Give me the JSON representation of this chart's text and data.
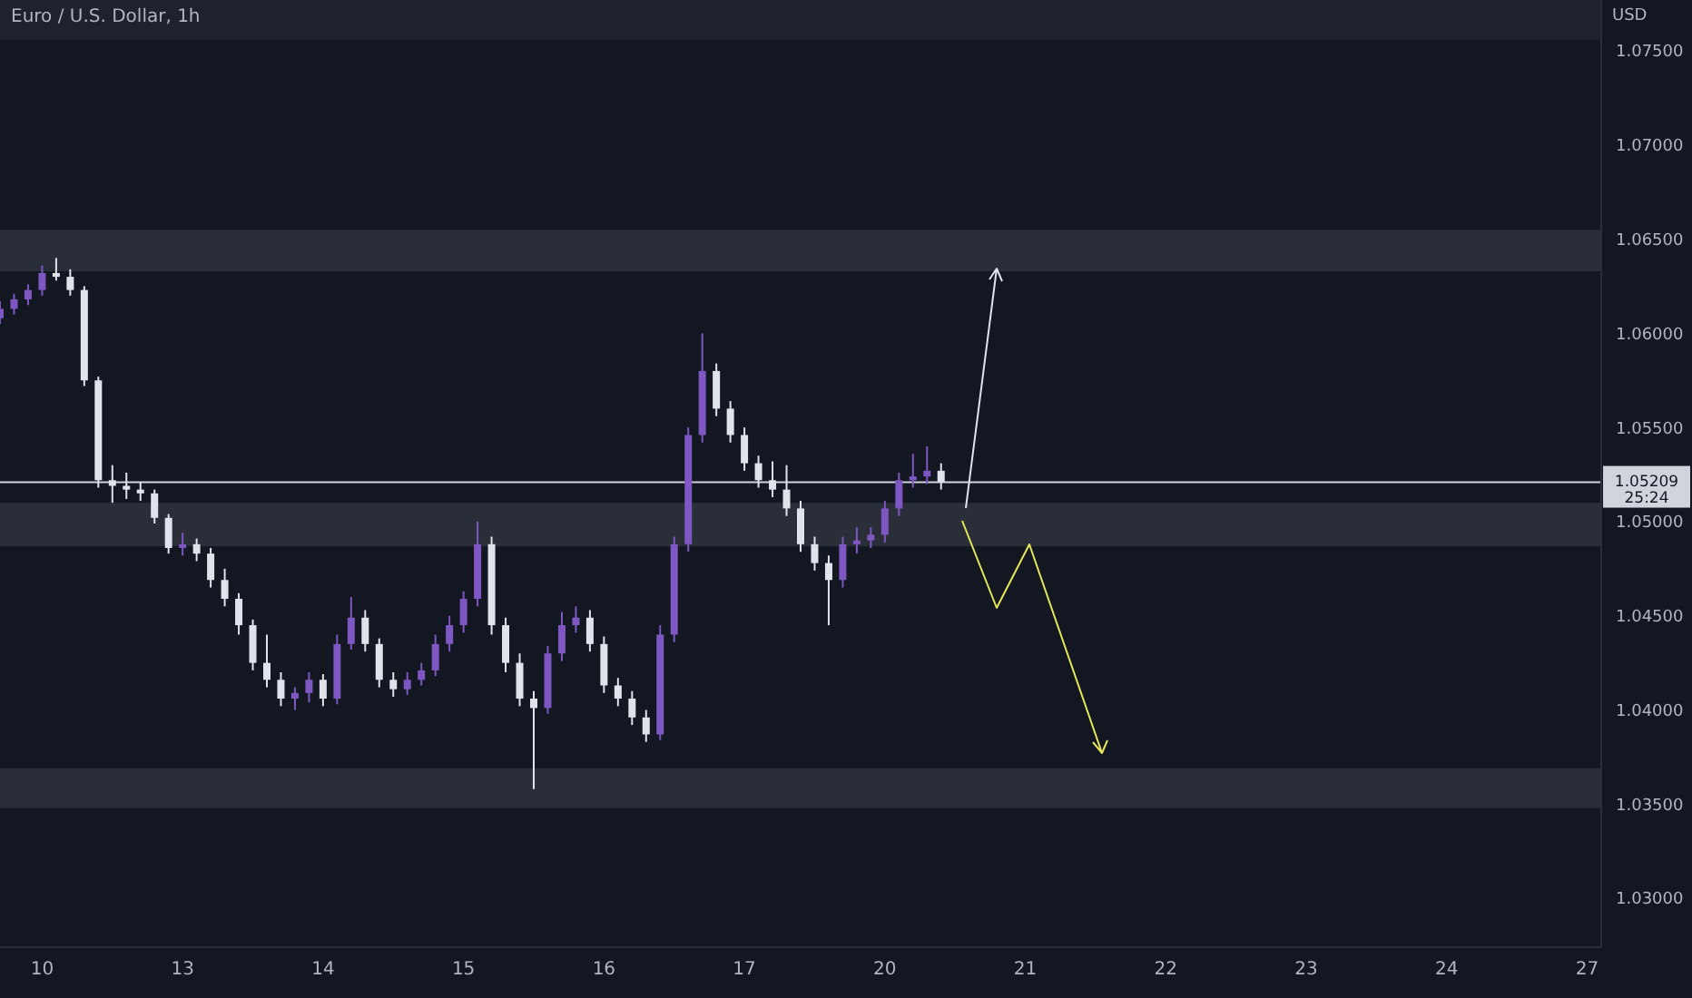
{
  "chart_data": {
    "type": "candlestick",
    "title": "Euro / U.S. Dollar, 1h",
    "ylabel": "USD",
    "categories": [
      null,
      null,
      null,
      "10",
      null,
      null,
      null,
      null,
      null,
      null,
      null,
      null,
      null,
      "13",
      null,
      null,
      null,
      null,
      null,
      null,
      null,
      null,
      null,
      "14",
      null,
      null,
      null,
      null,
      null,
      null,
      null,
      null,
      null,
      "15",
      null,
      null,
      null,
      null,
      null,
      null,
      null,
      null,
      null,
      "16",
      null,
      null,
      null,
      null,
      null,
      null,
      null,
      null,
      null,
      "17",
      null,
      null,
      null,
      null,
      null,
      null,
      null,
      null,
      null,
      "20",
      null,
      null,
      null,
      null,
      null,
      null,
      null,
      null,
      null,
      "21",
      null,
      null,
      null,
      null,
      null,
      null,
      null,
      null,
      null,
      "22",
      null,
      null,
      null,
      null,
      null,
      null,
      null,
      null,
      null,
      "23",
      null,
      null,
      null,
      null,
      null,
      null,
      null,
      null,
      null,
      "24",
      null,
      null,
      null,
      null,
      null,
      null,
      null,
      null,
      null,
      "27",
      null
    ],
    "ohlc": [
      [
        1.0608,
        1.0617,
        1.0605,
        1.0613
      ],
      [
        1.0613,
        1.0621,
        1.061,
        1.0618
      ],
      [
        1.0618,
        1.0626,
        1.0615,
        1.0623
      ],
      [
        1.0623,
        1.0636,
        1.062,
        1.0632
      ],
      [
        1.0632,
        1.064,
        1.0628,
        1.063
      ],
      [
        1.063,
        1.0634,
        1.062,
        1.0623
      ],
      [
        1.0623,
        1.0625,
        1.0572,
        1.0575
      ],
      [
        1.0575,
        1.0577,
        1.0518,
        1.0522
      ],
      [
        1.0522,
        1.053,
        1.051,
        1.0519
      ],
      [
        1.0519,
        1.0526,
        1.0512,
        1.0517
      ],
      [
        1.0517,
        1.0521,
        1.0511,
        1.0515
      ],
      [
        1.0515,
        1.0517,
        1.0499,
        1.0502
      ],
      [
        1.0502,
        1.0504,
        1.0483,
        1.0486
      ],
      [
        1.0486,
        1.0494,
        1.0482,
        1.0488
      ],
      [
        1.0488,
        1.0491,
        1.0479,
        1.0483
      ],
      [
        1.0483,
        1.0486,
        1.0465,
        1.0469
      ],
      [
        1.0469,
        1.0475,
        1.0455,
        1.0459
      ],
      [
        1.0459,
        1.0462,
        1.044,
        1.0445
      ],
      [
        1.0445,
        1.0448,
        1.0421,
        1.0425
      ],
      [
        1.0425,
        1.044,
        1.0412,
        1.0416
      ],
      [
        1.0416,
        1.042,
        1.0402,
        1.0406
      ],
      [
        1.0406,
        1.0412,
        1.04,
        1.0409
      ],
      [
        1.0409,
        1.042,
        1.0404,
        1.0416
      ],
      [
        1.0416,
        1.0419,
        1.0402,
        1.0406
      ],
      [
        1.0406,
        1.044,
        1.0403,
        1.0435
      ],
      [
        1.0435,
        1.046,
        1.0432,
        1.0449
      ],
      [
        1.0449,
        1.0453,
        1.0431,
        1.0435
      ],
      [
        1.0435,
        1.0438,
        1.0412,
        1.0416
      ],
      [
        1.0416,
        1.042,
        1.0407,
        1.0411
      ],
      [
        1.0411,
        1.042,
        1.0408,
        1.0416
      ],
      [
        1.0416,
        1.0425,
        1.0413,
        1.0421
      ],
      [
        1.0421,
        1.044,
        1.0418,
        1.0435
      ],
      [
        1.0435,
        1.045,
        1.0431,
        1.0445
      ],
      [
        1.0445,
        1.0463,
        1.0441,
        1.0459
      ],
      [
        1.0459,
        1.05,
        1.0455,
        1.0488
      ],
      [
        1.0488,
        1.0492,
        1.044,
        1.0445
      ],
      [
        1.0445,
        1.0449,
        1.042,
        1.0425
      ],
      [
        1.0425,
        1.043,
        1.0402,
        1.0406
      ],
      [
        1.0406,
        1.041,
        1.0358,
        1.0401
      ],
      [
        1.0401,
        1.0434,
        1.0398,
        1.043
      ],
      [
        1.043,
        1.0452,
        1.0426,
        1.0445
      ],
      [
        1.0445,
        1.0455,
        1.0441,
        1.0449
      ],
      [
        1.0449,
        1.0453,
        1.0431,
        1.0435
      ],
      [
        1.0435,
        1.0439,
        1.0409,
        1.0413
      ],
      [
        1.0413,
        1.0417,
        1.0402,
        1.0406
      ],
      [
        1.0406,
        1.041,
        1.0392,
        1.0396
      ],
      [
        1.0396,
        1.04,
        1.0383,
        1.0387
      ],
      [
        1.0387,
        1.0445,
        1.0384,
        1.044
      ],
      [
        1.044,
        1.0492,
        1.0436,
        1.0488
      ],
      [
        1.0488,
        1.055,
        1.0484,
        1.0546
      ],
      [
        1.0546,
        1.06,
        1.0542,
        1.058
      ],
      [
        1.058,
        1.0584,
        1.0556,
        1.056
      ],
      [
        1.056,
        1.0564,
        1.0542,
        1.0546
      ],
      [
        1.0546,
        1.055,
        1.0527,
        1.0531
      ],
      [
        1.0531,
        1.0535,
        1.0518,
        1.0522
      ],
      [
        1.0522,
        1.0532,
        1.0513,
        1.0517
      ],
      [
        1.0517,
        1.053,
        1.0503,
        1.0507
      ],
      [
        1.0507,
        1.0511,
        1.0484,
        1.0488
      ],
      [
        1.0488,
        1.0492,
        1.0474,
        1.0478
      ],
      [
        1.0478,
        1.0482,
        1.0445,
        1.0469
      ],
      [
        1.0469,
        1.0492,
        1.0465,
        1.0488
      ],
      [
        1.0488,
        1.0497,
        1.0483,
        1.049
      ],
      [
        1.049,
        1.0497,
        1.0486,
        1.0493
      ],
      [
        1.0493,
        1.0511,
        1.0489,
        1.0507
      ],
      [
        1.0507,
        1.0526,
        1.0503,
        1.0522
      ],
      [
        1.0522,
        1.0536,
        1.0518,
        1.0524
      ],
      [
        1.0524,
        1.054,
        1.052,
        1.0527
      ],
      [
        1.0527,
        1.0531,
        1.0517,
        1.0521
      ],
      null,
      null,
      null,
      null,
      null,
      null,
      null,
      null,
      null,
      null,
      null,
      null,
      null,
      null,
      null,
      null,
      null,
      null,
      null,
      null,
      null,
      null,
      null,
      null,
      null,
      null,
      null,
      null,
      null,
      null,
      null,
      null,
      null,
      null,
      null,
      null,
      null,
      null,
      null,
      null,
      null,
      null,
      null,
      null,
      null,
      null,
      null
    ],
    "colors": [
      "#7e57c2",
      "#7e57c2",
      "#7e57c2",
      "#7e57c2",
      "#e0e3eb",
      "#e0e3eb",
      "#e0e3eb",
      "#e0e3eb",
      "#e0e3eb",
      "#e0e3eb",
      "#e0e3eb",
      "#e0e3eb",
      "#e0e3eb",
      "#7e57c2",
      "#e0e3eb",
      "#e0e3eb",
      "#e0e3eb",
      "#e0e3eb",
      "#e0e3eb",
      "#e0e3eb",
      "#e0e3eb",
      "#7e57c2",
      "#7e57c2",
      "#e0e3eb",
      "#7e57c2",
      "#7e57c2",
      "#e0e3eb",
      "#e0e3eb",
      "#e0e3eb",
      "#7e57c2",
      "#7e57c2",
      "#7e57c2",
      "#7e57c2",
      "#7e57c2",
      "#7e57c2",
      "#e0e3eb",
      "#e0e3eb",
      "#e0e3eb",
      "#e0e3eb",
      "#7e57c2",
      "#7e57c2",
      "#7e57c2",
      "#e0e3eb",
      "#e0e3eb",
      "#e0e3eb",
      "#e0e3eb",
      "#e0e3eb",
      "#7e57c2",
      "#7e57c2",
      "#7e57c2",
      "#7e57c2",
      "#e0e3eb",
      "#e0e3eb",
      "#e0e3eb",
      "#e0e3eb",
      "#e0e3eb",
      "#e0e3eb",
      "#e0e3eb",
      "#e0e3eb",
      "#e0e3eb",
      "#7e57c2",
      "#7e57c2",
      "#7e57c2",
      "#7e57c2",
      "#7e57c2",
      "#7e57c2",
      "#7e57c2",
      "#e0e3eb",
      null,
      null,
      null,
      null,
      null,
      null,
      null,
      null,
      null,
      null,
      null,
      null,
      null,
      null,
      null,
      null,
      null,
      null,
      null,
      null,
      null,
      null,
      null,
      null,
      null,
      null,
      null,
      null,
      null,
      null,
      null,
      null,
      null,
      null,
      null,
      null,
      null,
      null,
      null,
      null,
      null,
      null,
      null,
      null,
      null,
      null,
      null
    ],
    "bands": [
      {
        "axis": "y",
        "from": 1.0633,
        "to": 1.0655,
        "color": "#2a2e39"
      },
      {
        "axis": "y",
        "from": 1.0487,
        "to": 1.051,
        "color": "#2a2e39"
      },
      {
        "axis": "y",
        "from": 1.0348,
        "to": 1.0369,
        "color": "#2a2e39"
      }
    ],
    "ref_lines": [
      {
        "axis": "y",
        "value": 1.05209,
        "label": "1.05209",
        "color": "#d1d4dc"
      }
    ],
    "annotations": [
      "25:24"
    ],
    "ylim": [
      1.0274,
      1.0777
    ],
    "yticks": [
      {
        "value": 1.03,
        "label": "1.03000"
      },
      {
        "value": 1.035,
        "label": "1.03500"
      },
      {
        "value": 1.04,
        "label": "1.04000"
      },
      {
        "value": 1.045,
        "label": "1.04500"
      },
      {
        "value": 1.05,
        "label": "1.05000"
      },
      {
        "value": 1.055,
        "label": "1.05500"
      },
      {
        "value": 1.06,
        "label": "1.06000"
      },
      {
        "value": 1.065,
        "label": "1.06500"
      },
      {
        "value": 1.07,
        "label": "1.07000"
      },
      {
        "value": 1.075,
        "label": "1.07500"
      }
    ]
  }
}
